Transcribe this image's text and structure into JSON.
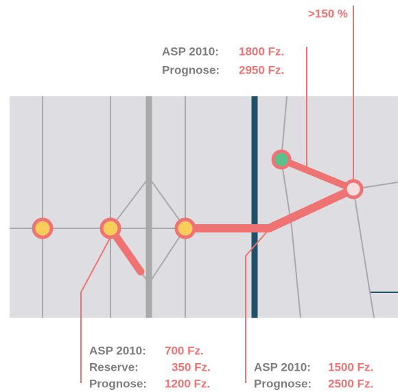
{
  "growth_label": ">150 %",
  "annotations": [
    {
      "lines": [
        {
          "label": "ASP 2010:",
          "value": "1800 Fz."
        },
        {
          "label": "Prognose:",
          "value": "2950 Fz."
        }
      ]
    },
    {
      "lines": [
        {
          "label": "ASP 2010:",
          "value": "700 Fz."
        },
        {
          "label": "Reserve:",
          "value": "350 Fz."
        },
        {
          "label": "Prognose:",
          "value": "1200 Fz."
        }
      ]
    },
    {
      "lines": [
        {
          "label": "ASP 2010:",
          "value": "1500 Fz."
        },
        {
          "label": "Prognose:",
          "value": "2500 Fz."
        }
      ]
    }
  ]
}
